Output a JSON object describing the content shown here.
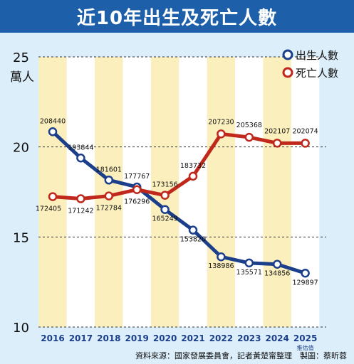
{
  "title": "近10年出生及死亡人數",
  "source_note": "資料來源：國家發展委員會，記者黃楚甯整理　製圖：蔡昕蓉",
  "chart_data": {
    "type": "line",
    "title": "近10年出生及死亡人數",
    "ylabel": "萬人",
    "ylim": [
      10,
      25
    ],
    "yticks": [
      10,
      15,
      20,
      25
    ],
    "x": [
      "2016",
      "2017",
      "2018",
      "2019",
      "2020",
      "2021",
      "2022",
      "2023",
      "2024",
      "2025"
    ],
    "x_note": "推估值",
    "legend_position": "top-right",
    "series": [
      {
        "name": "出生人數",
        "color": "#1b3f8a",
        "values": [
          208440,
          193844,
          181601,
          177767,
          165249,
          153820,
          138986,
          135571,
          134856,
          129897
        ],
        "labels": [
          "208440",
          "193844",
          "181601",
          "177767",
          "165249",
          "153820",
          "138986",
          "135571",
          "134856",
          "129897"
        ]
      },
      {
        "name": "死亡人數",
        "color": "#c0281c",
        "values": [
          172405,
          171242,
          172784,
          176296,
          173156,
          183732,
          207230,
          205368,
          202107,
          202074
        ],
        "labels": [
          "172405",
          "171242",
          "172784",
          "176296",
          "173156",
          "183732",
          "207230",
          "205368",
          "202107",
          "202074"
        ]
      }
    ],
    "stripe_colors": [
      "#fbefbd",
      "#ffffff"
    ]
  }
}
